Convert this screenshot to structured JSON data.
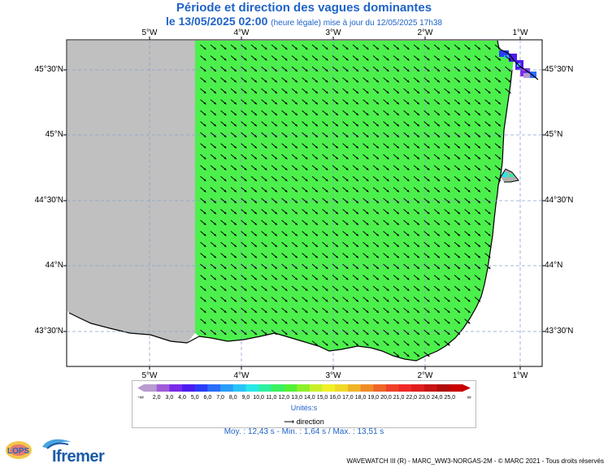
{
  "title": "Période et direction des vagues dominantes",
  "subtitle_date": "le 13/05/2025 02:00",
  "subtitle_note": "(heure légale) mise à jour du 12/05/2025 17h38",
  "map": {
    "lon_labels": [
      "5°W",
      "4°W",
      "3°W",
      "2°W",
      "1°W"
    ],
    "lat_labels": [
      "45°30'N",
      "45°N",
      "44°30'N",
      "44°N",
      "43°30'N"
    ],
    "field_color": "#4cf04c",
    "land_color": "#ffffff",
    "nodata_color": "#c0c0c0"
  },
  "legend": {
    "bins": [
      "2,0",
      "3,0",
      "4,0",
      "5,0",
      "6,0",
      "7,0",
      "8,0",
      "9,0",
      "10,0",
      "11,0",
      "12,0",
      "13,0",
      "14,0",
      "15,0",
      "16,0",
      "17,0",
      "18,0",
      "19,0",
      "20,0",
      "21,0",
      "22,0",
      "23,0",
      "24,0",
      "25,0"
    ],
    "left_end": "-∞",
    "right_end": "∞",
    "colors": [
      "#b99bd0",
      "#a05ad8",
      "#7a2be8",
      "#4b1cf0",
      "#2a3cf8",
      "#2a6df8",
      "#2a9cf8",
      "#28c4f8",
      "#28e8e8",
      "#2ef0a0",
      "#38f060",
      "#52f036",
      "#8ef028",
      "#c8f028",
      "#f0f028",
      "#f0d828",
      "#f0b428",
      "#f08c28",
      "#f06428",
      "#f04028",
      "#f02828",
      "#e01e1e",
      "#c81414",
      "#b00a0a",
      "#c80000"
    ],
    "units": "Unités:s",
    "direction_label": "direction"
  },
  "stats": "Moy. : 12,43 s   -   Min. : 1,64 s / Max. : 13,51 s",
  "footer": "WAVEWATCH III (R) - MARC_WW3-NORGAS-2M - © MARC 2021 - Tous droits réservés",
  "logos": {
    "lops": "LOPS",
    "ifremer": "Ifremer"
  }
}
